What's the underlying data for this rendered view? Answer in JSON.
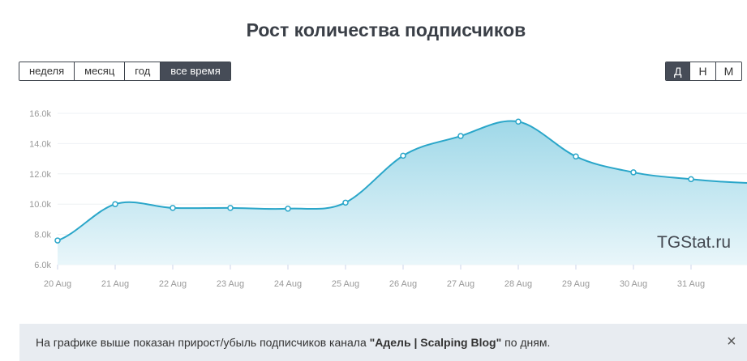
{
  "title": "Рост количества подписчиков",
  "range_buttons": [
    {
      "label": "неделя",
      "active": false
    },
    {
      "label": "месяц",
      "active": false
    },
    {
      "label": "год",
      "active": false
    },
    {
      "label": "все время",
      "active": true
    }
  ],
  "period_buttons": [
    {
      "label": "Д",
      "active": true
    },
    {
      "label": "Н",
      "active": false
    },
    {
      "label": "М",
      "active": false
    }
  ],
  "watermark": "TGStat.ru",
  "info": {
    "prefix": "На графике выше показан прирост/убыль подписчиков канала ",
    "channel": "\"Адель | Scalping Blog\"",
    "suffix": " по дням.",
    "close_glyph": "×"
  },
  "colors": {
    "line": "#2aa6c9",
    "fill_top": "#9fd8e8",
    "fill_bottom": "#e9f6fa",
    "active_button": "#464c57"
  },
  "chart_data": {
    "type": "area",
    "categories": [
      "20 Aug",
      "21 Aug",
      "22 Aug",
      "23 Aug",
      "24 Aug",
      "25 Aug",
      "26 Aug",
      "27 Aug",
      "28 Aug",
      "29 Aug",
      "30 Aug",
      "31 Aug"
    ],
    "values": [
      7600,
      10000,
      9750,
      9750,
      9700,
      10100,
      13200,
      14500,
      15450,
      13150,
      12100,
      11650
    ],
    "tail_value": 11400,
    "ylim": [
      6000,
      16000
    ],
    "yticks": [
      6000,
      8000,
      10000,
      12000,
      14000,
      16000
    ],
    "ytick_labels": [
      "6.0k",
      "8.0k",
      "10.0k",
      "12.0k",
      "14.0k",
      "16.0k"
    ],
    "grid": true,
    "xlabel": "",
    "ylabel": ""
  }
}
